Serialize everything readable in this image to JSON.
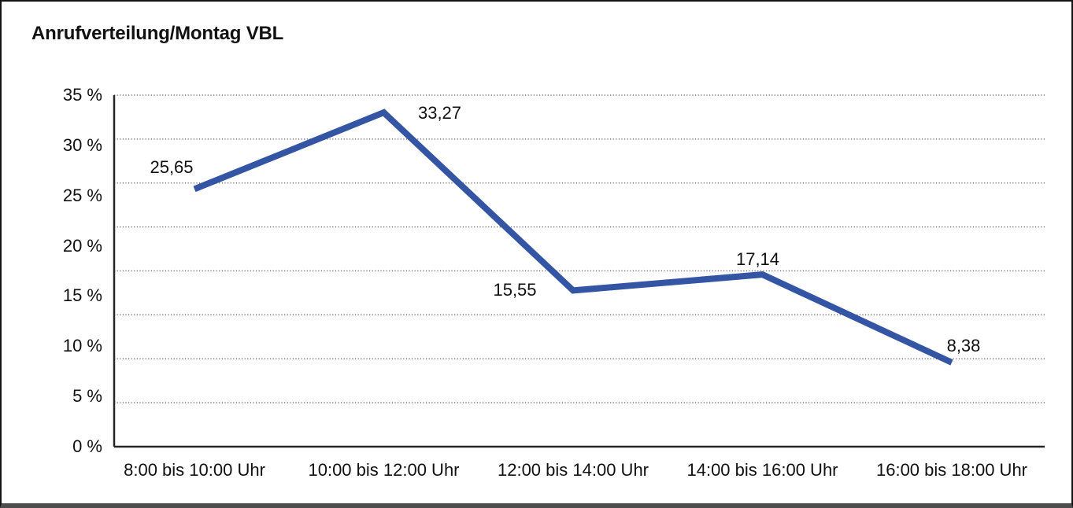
{
  "frame": {
    "background": "#ffffff",
    "border_color": "#141414",
    "bottom_bar_color": "#4d4d4d"
  },
  "chart_data": {
    "type": "line",
    "title": "Anrufverteilung/Montag VBL",
    "categories": [
      "8:00 bis 10:00 Uhr",
      "10:00 bis 12:00 Uhr",
      "12:00 bis 14:00 Uhr",
      "14:00 bis 16:00 Uhr",
      "16:00 bis 18:00 Uhr"
    ],
    "values": [
      25.65,
      33.27,
      15.55,
      17.14,
      8.38
    ],
    "point_labels": [
      "25,65",
      "33,27",
      "15,55",
      "17,14",
      "8,38"
    ],
    "y_ticks": [
      "35 %",
      "30 %",
      "25 %",
      "20 %",
      "15 %",
      "10 %",
      "5 %",
      "0 %"
    ],
    "y_tick_values": [
      35,
      30,
      25,
      20,
      15,
      10,
      5,
      0
    ],
    "ylim": [
      0,
      35
    ],
    "xlabel": "",
    "ylabel": "",
    "legend": "none",
    "grid": "horizontal dotted lines, 8 equal divisions between axis and top",
    "line_color": "#3454a4",
    "axis_color": "#262626",
    "gridline_color": "#595959",
    "text_color": "#111111"
  }
}
